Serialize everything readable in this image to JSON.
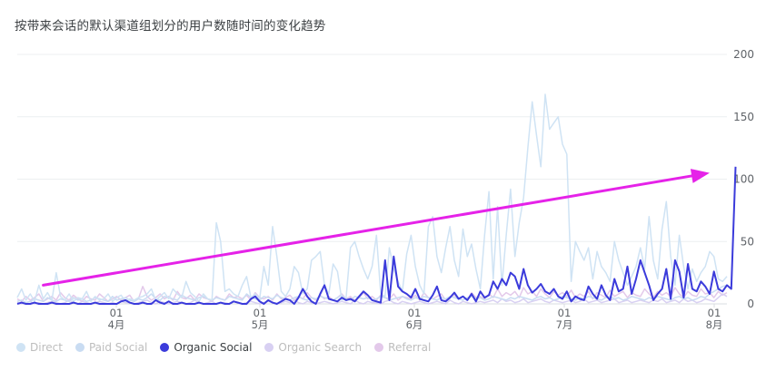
{
  "title": "按带来会话的默认渠道组划分的用户数随时间的变化趋势",
  "chart_data": {
    "type": "line",
    "x_ticks": [
      {
        "day": "01",
        "month": "4月"
      },
      {
        "day": "01",
        "month": "5月"
      },
      {
        "day": "01",
        "month": "6月"
      },
      {
        "day": "01",
        "month": "7月"
      },
      {
        "day": "01",
        "month": "8月"
      }
    ],
    "y_ticks": [
      0,
      50,
      100,
      150,
      200
    ],
    "ylim": [
      0,
      200
    ],
    "grid": true,
    "legend_position": "bottom-left",
    "active_series": "Organic Social",
    "series": [
      {
        "name": "Direct",
        "color": "#cfe3f4",
        "values": [
          5,
          12,
          3,
          8,
          2,
          15,
          4,
          9,
          3,
          25,
          6,
          3,
          8,
          2,
          5,
          4,
          10,
          2,
          6,
          3,
          4,
          8,
          2,
          5,
          7,
          2,
          4,
          3,
          5,
          6,
          8,
          12,
          3,
          6,
          9,
          4,
          12,
          8,
          5,
          18,
          9,
          6,
          2,
          8,
          4,
          3,
          65,
          50,
          10,
          12,
          8,
          6,
          15,
          22,
          5,
          8,
          4,
          30,
          15,
          62,
          38,
          10,
          6,
          12,
          30,
          25,
          8,
          12,
          35,
          38,
          42,
          15,
          8,
          32,
          26,
          3,
          5,
          45,
          50,
          38,
          28,
          20,
          30,
          55,
          8,
          6,
          45,
          28,
          18,
          10,
          40,
          55,
          30,
          15,
          8,
          62,
          70,
          38,
          25,
          45,
          62,
          35,
          22,
          60,
          38,
          48,
          28,
          12,
          55,
          90,
          20,
          78,
          15,
          55,
          92,
          38,
          65,
          85,
          125,
          162,
          135,
          110,
          168,
          140,
          145,
          150,
          128,
          120,
          18,
          50,
          42,
          35,
          45,
          20,
          42,
          30,
          25,
          18,
          50,
          35,
          25,
          15,
          22,
          30,
          45,
          28,
          70,
          35,
          20,
          60,
          82,
          38,
          15,
          55,
          30,
          12,
          28,
          18,
          25,
          30,
          42,
          38,
          20,
          18,
          22
        ]
      },
      {
        "name": "Paid Social",
        "color": "#c9dcf2",
        "values": [
          2,
          3,
          1,
          2,
          4,
          3,
          2,
          5,
          3,
          2,
          4,
          3,
          2,
          5,
          3,
          4,
          2,
          3,
          5,
          4,
          3,
          2,
          6,
          3,
          4,
          5,
          3,
          2,
          4,
          3,
          5,
          8,
          4,
          3,
          6,
          5,
          4,
          3,
          7,
          5,
          4,
          3,
          5,
          6,
          4,
          3,
          5,
          4,
          3,
          6,
          5,
          4,
          3,
          8,
          5,
          4,
          3,
          6,
          5,
          4,
          7,
          5,
          4,
          3,
          5,
          6,
          4,
          3,
          5,
          4,
          6,
          5,
          4,
          3,
          5,
          7,
          4,
          3,
          6,
          5,
          4,
          5,
          3,
          4,
          6,
          5,
          3,
          4,
          5,
          6,
          4,
          3,
          5,
          4,
          6,
          5,
          4,
          3,
          5,
          4,
          6,
          5,
          4,
          3,
          5,
          6,
          4,
          5,
          3,
          4,
          6,
          5,
          4,
          3,
          5,
          4,
          6,
          5,
          4,
          3,
          5,
          6,
          4,
          5,
          3,
          4,
          6,
          5,
          4,
          3,
          5,
          4,
          6,
          5,
          4,
          3,
          5,
          6,
          4,
          5,
          3,
          4,
          6,
          5,
          4,
          3,
          5,
          4,
          6,
          5,
          4,
          3,
          5,
          6,
          4,
          5,
          3,
          4,
          6,
          5,
          8,
          10,
          12,
          14,
          15
        ]
      },
      {
        "name": "Organic Social",
        "color": "#3b3bdb",
        "values": [
          0,
          1,
          0,
          0,
          1,
          0,
          0,
          0,
          1,
          0,
          0,
          0,
          0,
          1,
          0,
          0,
          0,
          0,
          1,
          0,
          0,
          0,
          0,
          0,
          2,
          3,
          1,
          0,
          0,
          1,
          0,
          0,
          3,
          1,
          0,
          2,
          0,
          0,
          1,
          0,
          0,
          0,
          1,
          0,
          0,
          0,
          0,
          1,
          0,
          0,
          2,
          1,
          0,
          0,
          4,
          6,
          2,
          0,
          3,
          1,
          0,
          2,
          4,
          3,
          0,
          5,
          12,
          6,
          2,
          0,
          8,
          15,
          4,
          3,
          2,
          5,
          3,
          4,
          2,
          6,
          10,
          7,
          3,
          2,
          1,
          35,
          3,
          38,
          14,
          10,
          8,
          5,
          12,
          4,
          3,
          2,
          7,
          14,
          3,
          2,
          5,
          9,
          4,
          6,
          3,
          8,
          2,
          10,
          5,
          7,
          18,
          12,
          20,
          15,
          25,
          22,
          12,
          28,
          15,
          9,
          12,
          16,
          10,
          8,
          12,
          6,
          4,
          10,
          2,
          6,
          4,
          3,
          14,
          8,
          4,
          15,
          7,
          3,
          20,
          10,
          12,
          30,
          8,
          20,
          35,
          25,
          15,
          3,
          8,
          12,
          28,
          4,
          35,
          26,
          5,
          32,
          12,
          10,
          18,
          14,
          8,
          26,
          12,
          10,
          15,
          12,
          110
        ]
      },
      {
        "name": "Organic Search",
        "color": "#d8d0f2",
        "values": [
          1,
          0,
          1,
          2,
          0,
          1,
          0,
          1,
          2,
          1,
          0,
          1,
          3,
          1,
          0,
          2,
          1,
          0,
          1,
          2,
          1,
          0,
          1,
          0,
          2,
          1,
          1,
          0,
          1,
          2,
          3,
          1,
          0,
          2,
          1,
          0,
          1,
          2,
          1,
          0,
          1,
          3,
          1,
          0,
          1,
          2,
          0,
          1,
          1,
          0,
          2,
          1,
          0,
          1,
          2,
          1,
          0,
          1,
          2,
          1,
          0,
          1,
          2,
          1,
          3,
          1,
          0,
          2,
          1,
          0,
          1,
          2,
          1,
          0,
          1,
          2,
          1,
          0,
          3,
          1,
          0,
          2,
          1,
          1,
          0,
          2,
          3,
          1,
          0,
          2,
          1,
          0,
          1,
          2,
          1,
          0,
          1,
          2,
          1,
          0,
          3,
          1,
          0,
          2,
          1,
          0,
          1,
          2,
          1,
          2,
          3,
          1,
          4,
          2,
          3,
          1,
          2,
          4,
          1,
          2,
          3,
          4,
          2,
          1,
          3,
          2,
          1,
          2,
          3,
          1,
          2,
          4,
          1,
          2,
          3,
          1,
          2,
          3,
          4,
          1,
          2,
          3,
          1,
          2,
          3,
          2,
          1,
          3,
          2,
          4,
          1,
          2,
          3,
          1,
          4,
          2,
          3,
          1,
          2,
          4,
          3,
          2,
          5,
          8,
          6
        ]
      },
      {
        "name": "Referral",
        "color": "#e3c9ea",
        "values": [
          4,
          2,
          6,
          3,
          5,
          8,
          2,
          4,
          6,
          3,
          9,
          5,
          3,
          7,
          4,
          2,
          6,
          4,
          3,
          8,
          5,
          2,
          4,
          6,
          3,
          5,
          7,
          2,
          4,
          14,
          6,
          3,
          5,
          8,
          4,
          6,
          3,
          10,
          5,
          4,
          7,
          3,
          8,
          5,
          4,
          2,
          6,
          4,
          3,
          8,
          5,
          6,
          4,
          7,
          3,
          9,
          5,
          4,
          6,
          3,
          8,
          4,
          5,
          7,
          3,
          6,
          4,
          9,
          5,
          3,
          7,
          4,
          6,
          3,
          5,
          8,
          4,
          6,
          3,
          5,
          9,
          4,
          6,
          3,
          7,
          5,
          4,
          8,
          3,
          6,
          5,
          4,
          7,
          3,
          9,
          5,
          4,
          6,
          8,
          3,
          5,
          7,
          4,
          6,
          3,
          9,
          5,
          6,
          4,
          8,
          5,
          12,
          6,
          9,
          7,
          10,
          5,
          13,
          8,
          10,
          6,
          12,
          8,
          5,
          10,
          7,
          9,
          6,
          11,
          5,
          8,
          6,
          10,
          4,
          9,
          7,
          5,
          11,
          6,
          8,
          10,
          5,
          9,
          7,
          6,
          12,
          8,
          5,
          10,
          7,
          9,
          6,
          13,
          8,
          5,
          10,
          7,
          6,
          12,
          8,
          9,
          5,
          10,
          7,
          9
        ]
      }
    ]
  },
  "legend": [
    {
      "label": "Direct",
      "color": "#cfe3f4"
    },
    {
      "label": "Paid Social",
      "color": "#c9dcf2"
    },
    {
      "label": "Organic Social",
      "color": "#3b3bdb"
    },
    {
      "label": "Organic Search",
      "color": "#d8d0f2"
    },
    {
      "label": "Referral",
      "color": "#e3c9ea"
    }
  ],
  "annotation": {
    "type": "arrow",
    "color": "#e522e8",
    "from": [
      6,
      15
    ],
    "to": [
      160,
      105
    ]
  }
}
